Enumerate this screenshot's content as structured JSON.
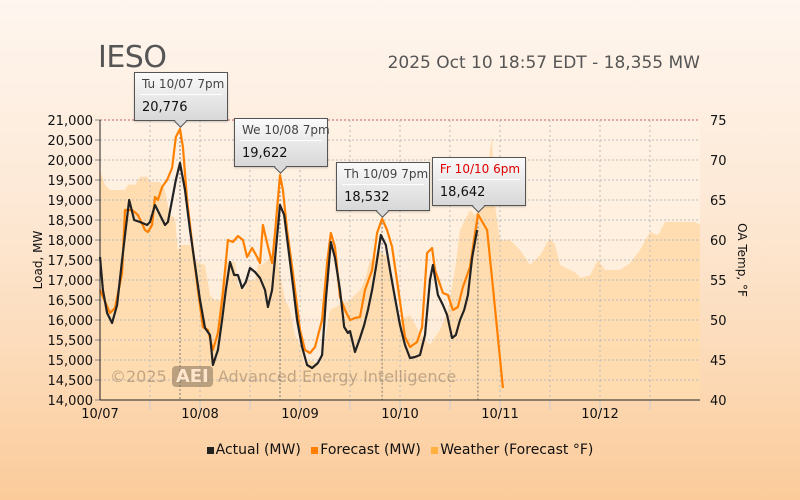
{
  "header": {
    "title": "IESO",
    "subtitle": "2025 Oct 10 18:57 EDT - 18,355 MW"
  },
  "watermark": {
    "copyright": "©2025",
    "logo": "AEI",
    "text": "Advanced Energy Intelligence"
  },
  "tooltips": [
    {
      "label": "Tu 10/07 7pm",
      "value": "20,776",
      "hour": 19.2,
      "mw": 20776,
      "label_color": "#444444"
    },
    {
      "label": "We 10/08 7pm",
      "value": "19,622",
      "hour": 43.2,
      "mw": 19622,
      "label_color": "#444444"
    },
    {
      "label": "Th 10/09 7pm",
      "value": "18,532",
      "hour": 67.7,
      "mw": 18532,
      "label_color": "#444444"
    },
    {
      "label": "Fr 10/10 6pm",
      "value": "18,642",
      "hour": 90.7,
      "mw": 18642,
      "label_color": "#e00000"
    }
  ],
  "legend": [
    {
      "label": "Actual (MW)",
      "color": "#222222"
    },
    {
      "label": "Forecast (MW)",
      "color": "#ff8000"
    },
    {
      "label": "Weather (Forecast °F)",
      "color": "#ffb040"
    }
  ],
  "chart_data": {
    "type": "line",
    "title": "IESO",
    "xlabel": "",
    "ylabel": "Load, MW",
    "y2label": "OA Temp, °F",
    "x_unit": "hours since 10/07 00:00",
    "xlim": [
      0,
      144
    ],
    "ylim": [
      14000,
      21000
    ],
    "y2lim": [
      40,
      75
    ],
    "x_ticks": [
      {
        "hour": 0,
        "label": "10/07"
      },
      {
        "hour": 24,
        "label": "10/08"
      },
      {
        "hour": 48,
        "label": "10/09"
      },
      {
        "hour": 72,
        "label": "10/10"
      },
      {
        "hour": 96,
        "label": "10/11"
      },
      {
        "hour": 120,
        "label": "10/12"
      }
    ],
    "y_ticks": [
      "21,000",
      "20,500",
      "20,000",
      "19,500",
      "19,000",
      "18,500",
      "18,000",
      "17,500",
      "17,000",
      "16,500",
      "16,000",
      "15,500",
      "15,000",
      "14,500",
      "14,000"
    ],
    "y2_ticks": [
      "75",
      "70",
      "65",
      "60",
      "55",
      "50",
      "45",
      "40"
    ],
    "grid": true,
    "legend_position": "bottom",
    "series": [
      {
        "name": "Actual (MW)",
        "color": "#222222",
        "points": [
          [
            0,
            17575
          ],
          [
            0.7,
            16750
          ],
          [
            1.7,
            16175
          ],
          [
            2.9,
            15925
          ],
          [
            4.1,
            16375
          ],
          [
            5.3,
            17500
          ],
          [
            7,
            19000
          ],
          [
            8.2,
            18500
          ],
          [
            9.6,
            18450
          ],
          [
            11.3,
            18375
          ],
          [
            12,
            18450
          ],
          [
            13.2,
            18875
          ],
          [
            14.4,
            18625
          ],
          [
            15.6,
            18375
          ],
          [
            16.3,
            18450
          ],
          [
            17.3,
            19000
          ],
          [
            18.2,
            19500
          ],
          [
            19.2,
            19925
          ],
          [
            20.4,
            19250
          ],
          [
            21.6,
            18250
          ],
          [
            22.8,
            17375
          ],
          [
            24,
            16500
          ],
          [
            25.2,
            15800
          ],
          [
            26.4,
            15625
          ],
          [
            27.1,
            14875
          ],
          [
            28.3,
            15250
          ],
          [
            29.3,
            16000
          ],
          [
            30.2,
            16750
          ],
          [
            31.2,
            17450
          ],
          [
            32.2,
            17125
          ],
          [
            33.1,
            17125
          ],
          [
            34.1,
            16800
          ],
          [
            35,
            16950
          ],
          [
            36,
            17300
          ],
          [
            37.2,
            17200
          ],
          [
            38.4,
            17050
          ],
          [
            39.6,
            16750
          ],
          [
            40.3,
            16325
          ],
          [
            41.3,
            16750
          ],
          [
            42.2,
            17750
          ],
          [
            43.2,
            18875
          ],
          [
            44.2,
            18625
          ],
          [
            45.1,
            17875
          ],
          [
            46.3,
            16875
          ],
          [
            47.3,
            16000
          ],
          [
            48.5,
            15325
          ],
          [
            49.7,
            14875
          ],
          [
            50.9,
            14800
          ],
          [
            52.3,
            14925
          ],
          [
            53.3,
            15125
          ],
          [
            54.2,
            16500
          ],
          [
            55.4,
            17950
          ],
          [
            56.4,
            17550
          ],
          [
            57.6,
            16750
          ],
          [
            58.6,
            15825
          ],
          [
            59.5,
            15675
          ],
          [
            60,
            15725
          ],
          [
            61.2,
            15200
          ],
          [
            62.4,
            15550
          ],
          [
            63.4,
            15875
          ],
          [
            64.3,
            16250
          ],
          [
            65.3,
            16750
          ],
          [
            66.2,
            17300
          ],
          [
            67.4,
            18125
          ],
          [
            68.6,
            17875
          ],
          [
            69.6,
            17250
          ],
          [
            70.8,
            16550
          ],
          [
            72,
            15875
          ],
          [
            73.2,
            15375
          ],
          [
            74.4,
            15050
          ],
          [
            75.6,
            15075
          ],
          [
            76.8,
            15125
          ],
          [
            78,
            15625
          ],
          [
            79.2,
            17000
          ],
          [
            79.9,
            17375
          ],
          [
            81.1,
            16625
          ],
          [
            82.3,
            16375
          ],
          [
            83.3,
            16125
          ],
          [
            84.5,
            15550
          ],
          [
            85.4,
            15625
          ],
          [
            86.4,
            16000
          ],
          [
            87.4,
            16250
          ],
          [
            88.3,
            16625
          ],
          [
            89.3,
            17550
          ],
          [
            90.5,
            18250
          ]
        ]
      },
      {
        "name": "Forecast (MW)",
        "color": "#ff8000",
        "points": [
          [
            0,
            16750
          ],
          [
            2.4,
            16175
          ],
          [
            3.6,
            16300
          ],
          [
            5.3,
            17175
          ],
          [
            6,
            18750
          ],
          [
            7.7,
            18750
          ],
          [
            9.1,
            18625
          ],
          [
            10.8,
            18250
          ],
          [
            11.5,
            18200
          ],
          [
            12.5,
            18375
          ],
          [
            13.2,
            19075
          ],
          [
            13.9,
            19000
          ],
          [
            14.9,
            19325
          ],
          [
            16.1,
            19500
          ],
          [
            17.3,
            19800
          ],
          [
            18.2,
            20575
          ],
          [
            19.2,
            20776
          ],
          [
            19.9,
            20325
          ],
          [
            20.9,
            19000
          ],
          [
            22.3,
            17750
          ],
          [
            23.5,
            16750
          ],
          [
            24.7,
            15825
          ],
          [
            25.9,
            15750
          ],
          [
            27.1,
            15250
          ],
          [
            28.3,
            15675
          ],
          [
            29.5,
            16675
          ],
          [
            30.7,
            18000
          ],
          [
            31.9,
            17950
          ],
          [
            33.1,
            18100
          ],
          [
            34.3,
            18000
          ],
          [
            35.3,
            17575
          ],
          [
            36.5,
            17800
          ],
          [
            37.7,
            17575
          ],
          [
            38.4,
            17425
          ],
          [
            39.1,
            18375
          ],
          [
            40.1,
            17925
          ],
          [
            41.3,
            17425
          ],
          [
            42,
            18175
          ],
          [
            43.2,
            19622
          ],
          [
            43.9,
            19250
          ],
          [
            44.9,
            18250
          ],
          [
            46.3,
            17175
          ],
          [
            48,
            15750
          ],
          [
            49.2,
            15250
          ],
          [
            50.4,
            15175
          ],
          [
            51.6,
            15325
          ],
          [
            53.3,
            16000
          ],
          [
            54.5,
            17425
          ],
          [
            55.4,
            18175
          ],
          [
            56.4,
            17825
          ],
          [
            57.6,
            16575
          ],
          [
            58.8,
            16250
          ],
          [
            60,
            16000
          ],
          [
            61.2,
            16050
          ],
          [
            62.4,
            16075
          ],
          [
            63.6,
            16750
          ],
          [
            65.3,
            17250
          ],
          [
            66.5,
            18175
          ],
          [
            67.7,
            18532
          ],
          [
            68.9,
            18250
          ],
          [
            70.1,
            17825
          ],
          [
            71.5,
            16825
          ],
          [
            73.2,
            15575
          ],
          [
            74.4,
            15325
          ],
          [
            76.1,
            15450
          ],
          [
            77.3,
            15825
          ],
          [
            78.5,
            17675
          ],
          [
            79.7,
            17800
          ],
          [
            80.4,
            17250
          ],
          [
            82.3,
            16675
          ],
          [
            83.5,
            16625
          ],
          [
            84.7,
            16250
          ],
          [
            85.9,
            16325
          ],
          [
            87.1,
            16825
          ],
          [
            88.8,
            17325
          ],
          [
            90.7,
            18642
          ],
          [
            92.9,
            18250
          ],
          [
            94.3,
            16825
          ],
          [
            96.7,
            14300
          ]
        ]
      },
      {
        "name": "Weather (Forecast °F)",
        "color": "#ffb040",
        "axis": "right",
        "type": "area",
        "points": [
          [
            0,
            68.75
          ],
          [
            1.2,
            66.9
          ],
          [
            2.4,
            66.25
          ],
          [
            6,
            66.25
          ],
          [
            6.7,
            66.9
          ],
          [
            8.4,
            66.9
          ],
          [
            9.6,
            67.9
          ],
          [
            11.3,
            67.9
          ],
          [
            12,
            67.25
          ],
          [
            14.4,
            67.25
          ],
          [
            15.6,
            66.25
          ],
          [
            16.8,
            63.1
          ],
          [
            18,
            62.75
          ],
          [
            18.7,
            58.75
          ],
          [
            19.7,
            59.4
          ],
          [
            21.6,
            59.4
          ],
          [
            22.8,
            57.5
          ],
          [
            24,
            57.1
          ],
          [
            25.2,
            56.9
          ],
          [
            26.4,
            53.1
          ],
          [
            27.6,
            52.5
          ],
          [
            28.8,
            52.5
          ],
          [
            30,
            57.25
          ],
          [
            32.4,
            57.25
          ],
          [
            33.1,
            54.4
          ],
          [
            34.6,
            53.75
          ],
          [
            35.5,
            55
          ],
          [
            37.2,
            55
          ],
          [
            37.9,
            56.9
          ],
          [
            38.9,
            56.9
          ],
          [
            40.3,
            57.5
          ],
          [
            41.3,
            58.1
          ],
          [
            42.2,
            58.75
          ],
          [
            43.2,
            55.6
          ],
          [
            44.4,
            52.5
          ],
          [
            45.6,
            51.25
          ],
          [
            46.8,
            48.1
          ],
          [
            48,
            46.9
          ],
          [
            49.2,
            44.4
          ],
          [
            50.4,
            45
          ],
          [
            52.8,
            44.4
          ],
          [
            54,
            47.5
          ],
          [
            55.2,
            51.25
          ],
          [
            57.6,
            51.9
          ],
          [
            60,
            52.5
          ],
          [
            62.4,
            53.75
          ],
          [
            63.6,
            55
          ],
          [
            64.8,
            57.5
          ],
          [
            66,
            57.75
          ],
          [
            66.7,
            58.75
          ],
          [
            68.4,
            58.1
          ],
          [
            69.6,
            57.5
          ],
          [
            70.8,
            52.5
          ],
          [
            72,
            50
          ],
          [
            74.4,
            50.6
          ],
          [
            76.3,
            48.75
          ],
          [
            78,
            47.5
          ],
          [
            79.2,
            46.9
          ],
          [
            81.6,
            48.75
          ],
          [
            83.5,
            51.25
          ],
          [
            85.2,
            56.25
          ],
          [
            86.4,
            61.25
          ],
          [
            87.6,
            62.5
          ],
          [
            88.8,
            63.75
          ],
          [
            90,
            63.1
          ],
          [
            91.2,
            64.4
          ],
          [
            92.4,
            65
          ],
          [
            93.6,
            71.25
          ],
          [
            94.1,
            72.9
          ],
          [
            94.6,
            65
          ],
          [
            96,
            60
          ],
          [
            98.4,
            60
          ],
          [
            100.8,
            58.75
          ],
          [
            103.2,
            56.9
          ],
          [
            105.6,
            58.1
          ],
          [
            108,
            60.25
          ],
          [
            109.2,
            59.4
          ],
          [
            110.4,
            56.9
          ],
          [
            112.8,
            56.25
          ],
          [
            114,
            56
          ],
          [
            115.2,
            55.25
          ],
          [
            117.6,
            55.6
          ],
          [
            119.5,
            57.5
          ],
          [
            121.2,
            56.25
          ],
          [
            124.8,
            56.25
          ],
          [
            127.2,
            57.1
          ],
          [
            129.6,
            58.75
          ],
          [
            132,
            61
          ],
          [
            133.9,
            60.6
          ],
          [
            135.6,
            62.25
          ],
          [
            139.2,
            62.25
          ],
          [
            142.8,
            62.25
          ],
          [
            144,
            61.9
          ]
        ]
      }
    ]
  }
}
